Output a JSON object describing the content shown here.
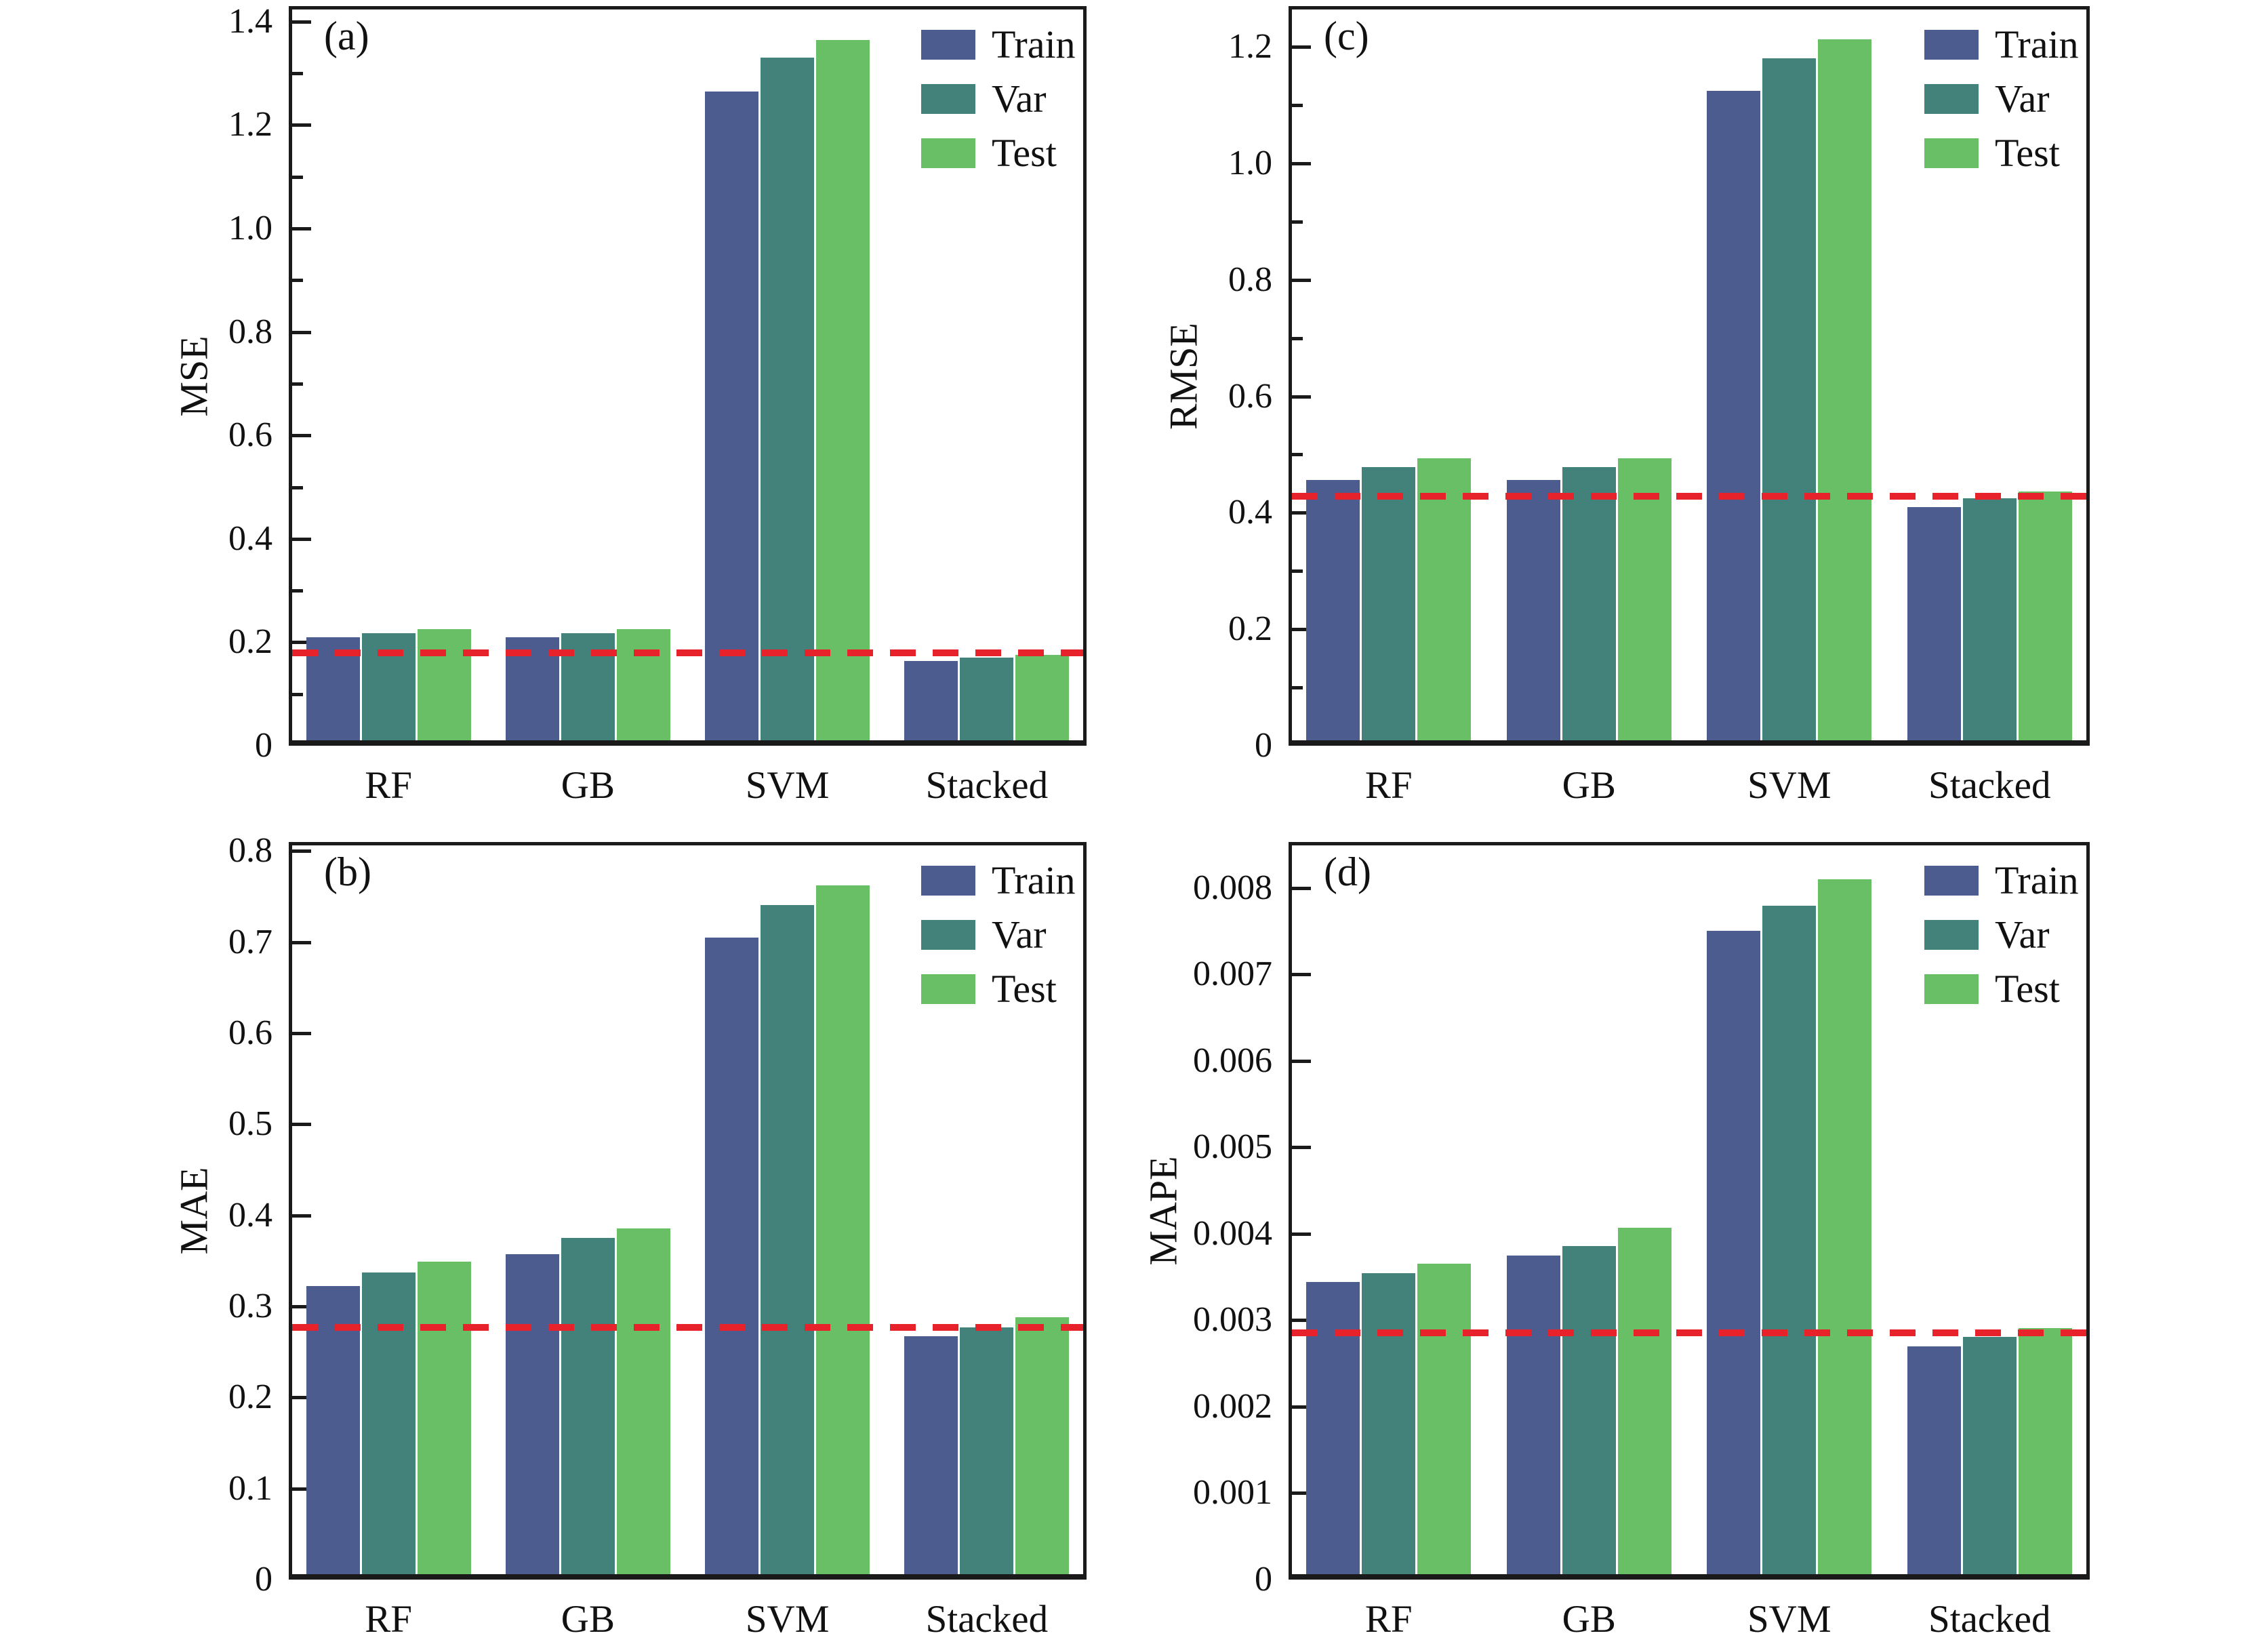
{
  "figure": {
    "background": "#ffffff",
    "colors": {
      "train": "#4d5c8f",
      "var": "#43827b",
      "test": "#68bf66",
      "baseline_line": "#e8222a",
      "axis": "#1a1a1a",
      "text": "#111111"
    },
    "legend": {
      "labels": [
        "Train",
        "Var",
        "Test"
      ],
      "position": "top-right"
    }
  },
  "chart_data": [
    {
      "id": "a",
      "panel_letter": "(a)",
      "type": "bar",
      "position": "top-left",
      "title": "",
      "xlabel": "",
      "ylabel": "MSE",
      "categories": [
        "RF",
        "GB",
        "SVM",
        "Stacked"
      ],
      "series": [
        {
          "name": "Train",
          "values": [
            0.21,
            0.21,
            1.265,
            0.164
          ]
        },
        {
          "name": "Var",
          "values": [
            0.218,
            0.218,
            1.33,
            0.17
          ]
        },
        {
          "name": "Test",
          "values": [
            0.226,
            0.226,
            1.365,
            0.175
          ]
        }
      ],
      "reference_line": 0.18,
      "reference_line_style": "red-dashed",
      "ylim": [
        0,
        1.43
      ],
      "yticks": {
        "values": [
          0,
          0.2,
          0.4,
          0.6,
          0.8,
          1.0,
          1.2,
          1.4
        ],
        "labels": [
          "0",
          "0.2",
          "0.4",
          "0.6",
          "0.8",
          "1.0",
          "1.2",
          "1.4"
        ],
        "minor": [
          0.1,
          0.3,
          0.5,
          0.7,
          0.9,
          1.1,
          1.3
        ]
      },
      "grid": false,
      "legend_position": "top-right"
    },
    {
      "id": "b",
      "panel_letter": "(b)",
      "type": "bar",
      "position": "bottom-left",
      "title": "",
      "xlabel": "",
      "ylabel": "MAE",
      "categories": [
        "RF",
        "GB",
        "SVM",
        "Stacked"
      ],
      "series": [
        {
          "name": "Train",
          "values": [
            0.322,
            0.357,
            0.705,
            0.267
          ]
        },
        {
          "name": "Var",
          "values": [
            0.337,
            0.375,
            0.741,
            0.277
          ]
        },
        {
          "name": "Test",
          "values": [
            0.349,
            0.386,
            0.762,
            0.288
          ]
        }
      ],
      "reference_line": 0.277,
      "reference_line_style": "red-dashed",
      "ylim": [
        0,
        0.81
      ],
      "yticks": {
        "values": [
          0,
          0.1,
          0.2,
          0.3,
          0.4,
          0.5,
          0.6,
          0.7,
          0.8
        ],
        "labels": [
          "0",
          "0.1",
          "0.2",
          "0.3",
          "0.4",
          "0.5",
          "0.6",
          "0.7",
          "0.8"
        ],
        "minor": []
      },
      "grid": false,
      "legend_position": "top-right"
    },
    {
      "id": "c",
      "panel_letter": "(c)",
      "type": "bar",
      "position": "top-right",
      "title": "",
      "xlabel": "",
      "ylabel": "RMSE",
      "categories": [
        "RF",
        "GB",
        "SVM",
        "Stacked"
      ],
      "series": [
        {
          "name": "Train",
          "values": [
            0.456,
            0.456,
            1.125,
            0.41
          ]
        },
        {
          "name": "Var",
          "values": [
            0.479,
            0.479,
            1.18,
            0.425
          ]
        },
        {
          "name": "Test",
          "values": [
            0.493,
            0.494,
            1.213,
            0.437
          ]
        }
      ],
      "reference_line": 0.428,
      "reference_line_style": "red-dashed",
      "ylim": [
        0,
        1.27
      ],
      "yticks": {
        "values": [
          0,
          0.2,
          0.4,
          0.6,
          0.8,
          1.0,
          1.2
        ],
        "labels": [
          "0",
          "0.2",
          "0.4",
          "0.6",
          "0.8",
          "1.0",
          "1.2"
        ],
        "minor": [
          0.1,
          0.3,
          0.5,
          0.7,
          0.9,
          1.1
        ]
      },
      "grid": false,
      "legend_position": "top-right"
    },
    {
      "id": "d",
      "panel_letter": "(d)",
      "type": "bar",
      "position": "bottom-right",
      "title": "",
      "xlabel": "",
      "ylabel": "MAPE",
      "categories": [
        "RF",
        "GB",
        "SVM",
        "Stacked"
      ],
      "series": [
        {
          "name": "Train",
          "values": [
            0.00344,
            0.00375,
            0.0075,
            0.0027
          ]
        },
        {
          "name": "Var",
          "values": [
            0.00354,
            0.00386,
            0.00779,
            0.00281
          ]
        },
        {
          "name": "Test",
          "values": [
            0.00365,
            0.00407,
            0.0081,
            0.00291
          ]
        }
      ],
      "reference_line": 0.00285,
      "reference_line_style": "red-dashed",
      "ylim": [
        0,
        0.00853
      ],
      "yticks": {
        "values": [
          0,
          0.001,
          0.002,
          0.003,
          0.004,
          0.005,
          0.006,
          0.007,
          0.008
        ],
        "labels": [
          "0",
          "0.001",
          "0.002",
          "0.003",
          "0.004",
          "0.005",
          "0.006",
          "0.007",
          "0.008"
        ],
        "minor": []
      },
      "grid": false,
      "legend_position": "top-right"
    }
  ]
}
